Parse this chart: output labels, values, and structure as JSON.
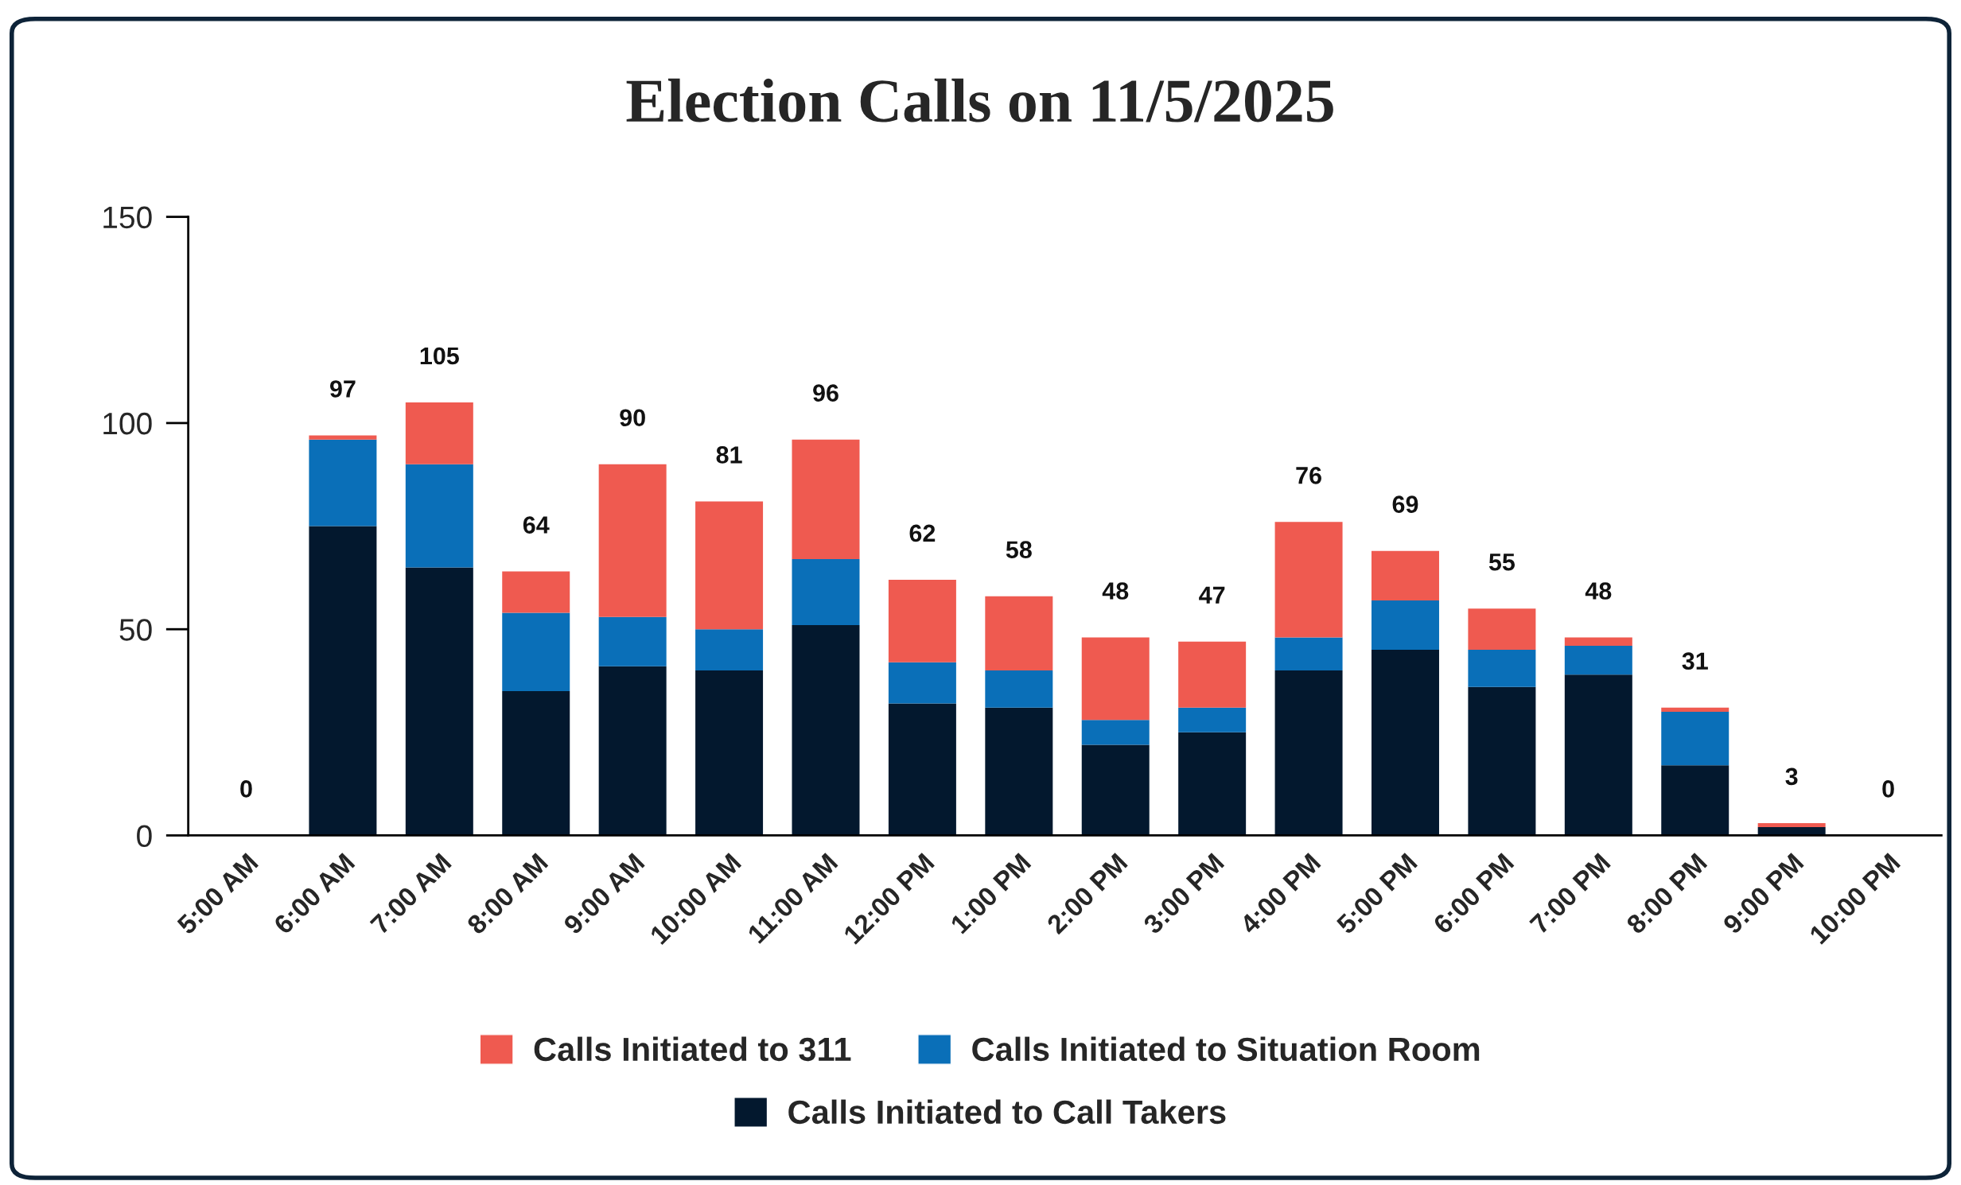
{
  "chart_data": {
    "type": "bar",
    "title": "Election Calls on 11/5/2025",
    "stacked": true,
    "categories": [
      "5:00 AM",
      "6:00 AM",
      "7:00 AM",
      "8:00 AM",
      "9:00 AM",
      "10:00 AM",
      "11:00 AM",
      "12:00 PM",
      "1:00 PM",
      "2:00 PM",
      "3:00 PM",
      "4:00 PM",
      "5:00 PM",
      "6:00 PM",
      "7:00 PM",
      "8:00 PM",
      "9:00 PM",
      "10:00 PM"
    ],
    "series": [
      {
        "name": "Calls Initiated to Call Takers",
        "color": "#03182e",
        "values": [
          0,
          75,
          65,
          35,
          41,
          40,
          51,
          32,
          31,
          22,
          25,
          40,
          45,
          36,
          39,
          17,
          2,
          0
        ]
      },
      {
        "name": "Calls Initiated to Situation Room",
        "color": "#0a6fb8",
        "values": [
          0,
          21,
          25,
          19,
          12,
          10,
          16,
          10,
          9,
          6,
          6,
          8,
          12,
          9,
          7,
          13,
          0,
          0
        ]
      },
      {
        "name": "Calls Initiated to 311",
        "color": "#ef5a50",
        "values": [
          0,
          1,
          15,
          10,
          37,
          31,
          29,
          20,
          18,
          20,
          16,
          28,
          12,
          10,
          2,
          1,
          1,
          0
        ]
      }
    ],
    "totals": [
      "0",
      "97",
      "105",
      "64",
      "90",
      "81",
      "96",
      "62",
      "58",
      "48",
      "47",
      "76",
      "69",
      "55",
      "48",
      "31",
      "3",
      "0"
    ],
    "ylim": [
      0,
      150
    ],
    "yticks": [
      0,
      50,
      100,
      150
    ],
    "grid": false,
    "legend": "bottom"
  }
}
